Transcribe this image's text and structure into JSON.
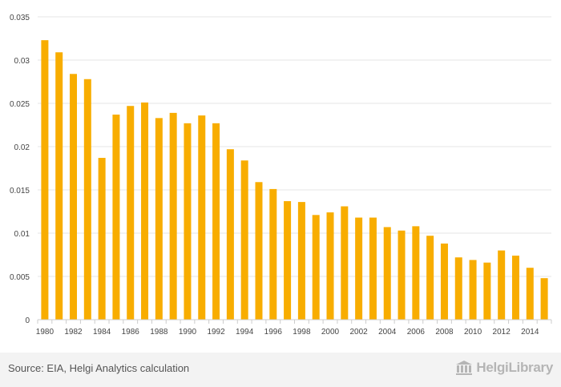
{
  "chart_data": {
    "type": "bar",
    "categories": [
      "1980",
      "1981",
      "1982",
      "1983",
      "1984",
      "1985",
      "1986",
      "1987",
      "1988",
      "1989",
      "1990",
      "1991",
      "1992",
      "1993",
      "1994",
      "1995",
      "1996",
      "1997",
      "1998",
      "1999",
      "2000",
      "2001",
      "2002",
      "2003",
      "2004",
      "2005",
      "2006",
      "2007",
      "2008",
      "2009",
      "2010",
      "2011",
      "2012",
      "2013",
      "2014",
      "2015"
    ],
    "x_tick_labels": [
      "1980",
      "1982",
      "1984",
      "1986",
      "1988",
      "1990",
      "1992",
      "1994",
      "1996",
      "1998",
      "2000",
      "2002",
      "2004",
      "2006",
      "2008",
      "2010",
      "2012",
      "2014"
    ],
    "y_tick_labels": [
      "0",
      "0.005",
      "0.01",
      "0.015",
      "0.02",
      "0.025",
      "0.03",
      "0.035"
    ],
    "values": [
      0.0323,
      0.0309,
      0.0284,
      0.0278,
      0.0187,
      0.0237,
      0.0247,
      0.0251,
      0.0233,
      0.0239,
      0.0227,
      0.0236,
      0.0227,
      0.0197,
      0.0184,
      0.0159,
      0.0151,
      0.0137,
      0.0136,
      0.0121,
      0.0124,
      0.0131,
      0.0118,
      0.0118,
      0.0107,
      0.0103,
      0.0108,
      0.0097,
      0.0088,
      0.0072,
      0.0069,
      0.0066,
      0.008,
      0.0074,
      0.006,
      0.0048
    ],
    "ylim": [
      0,
      0.035
    ],
    "title": "",
    "xlabel": "",
    "ylabel": "",
    "grid": true,
    "bar_color": "#f8ad00"
  },
  "footer": {
    "source": "Source: EIA, Helgi Analytics calculation",
    "brand": "HelgiLibrary"
  },
  "colors": {
    "grid": "#e6e6e6",
    "axis": "#cccccc",
    "footer_bg": "#f3f3f3"
  }
}
